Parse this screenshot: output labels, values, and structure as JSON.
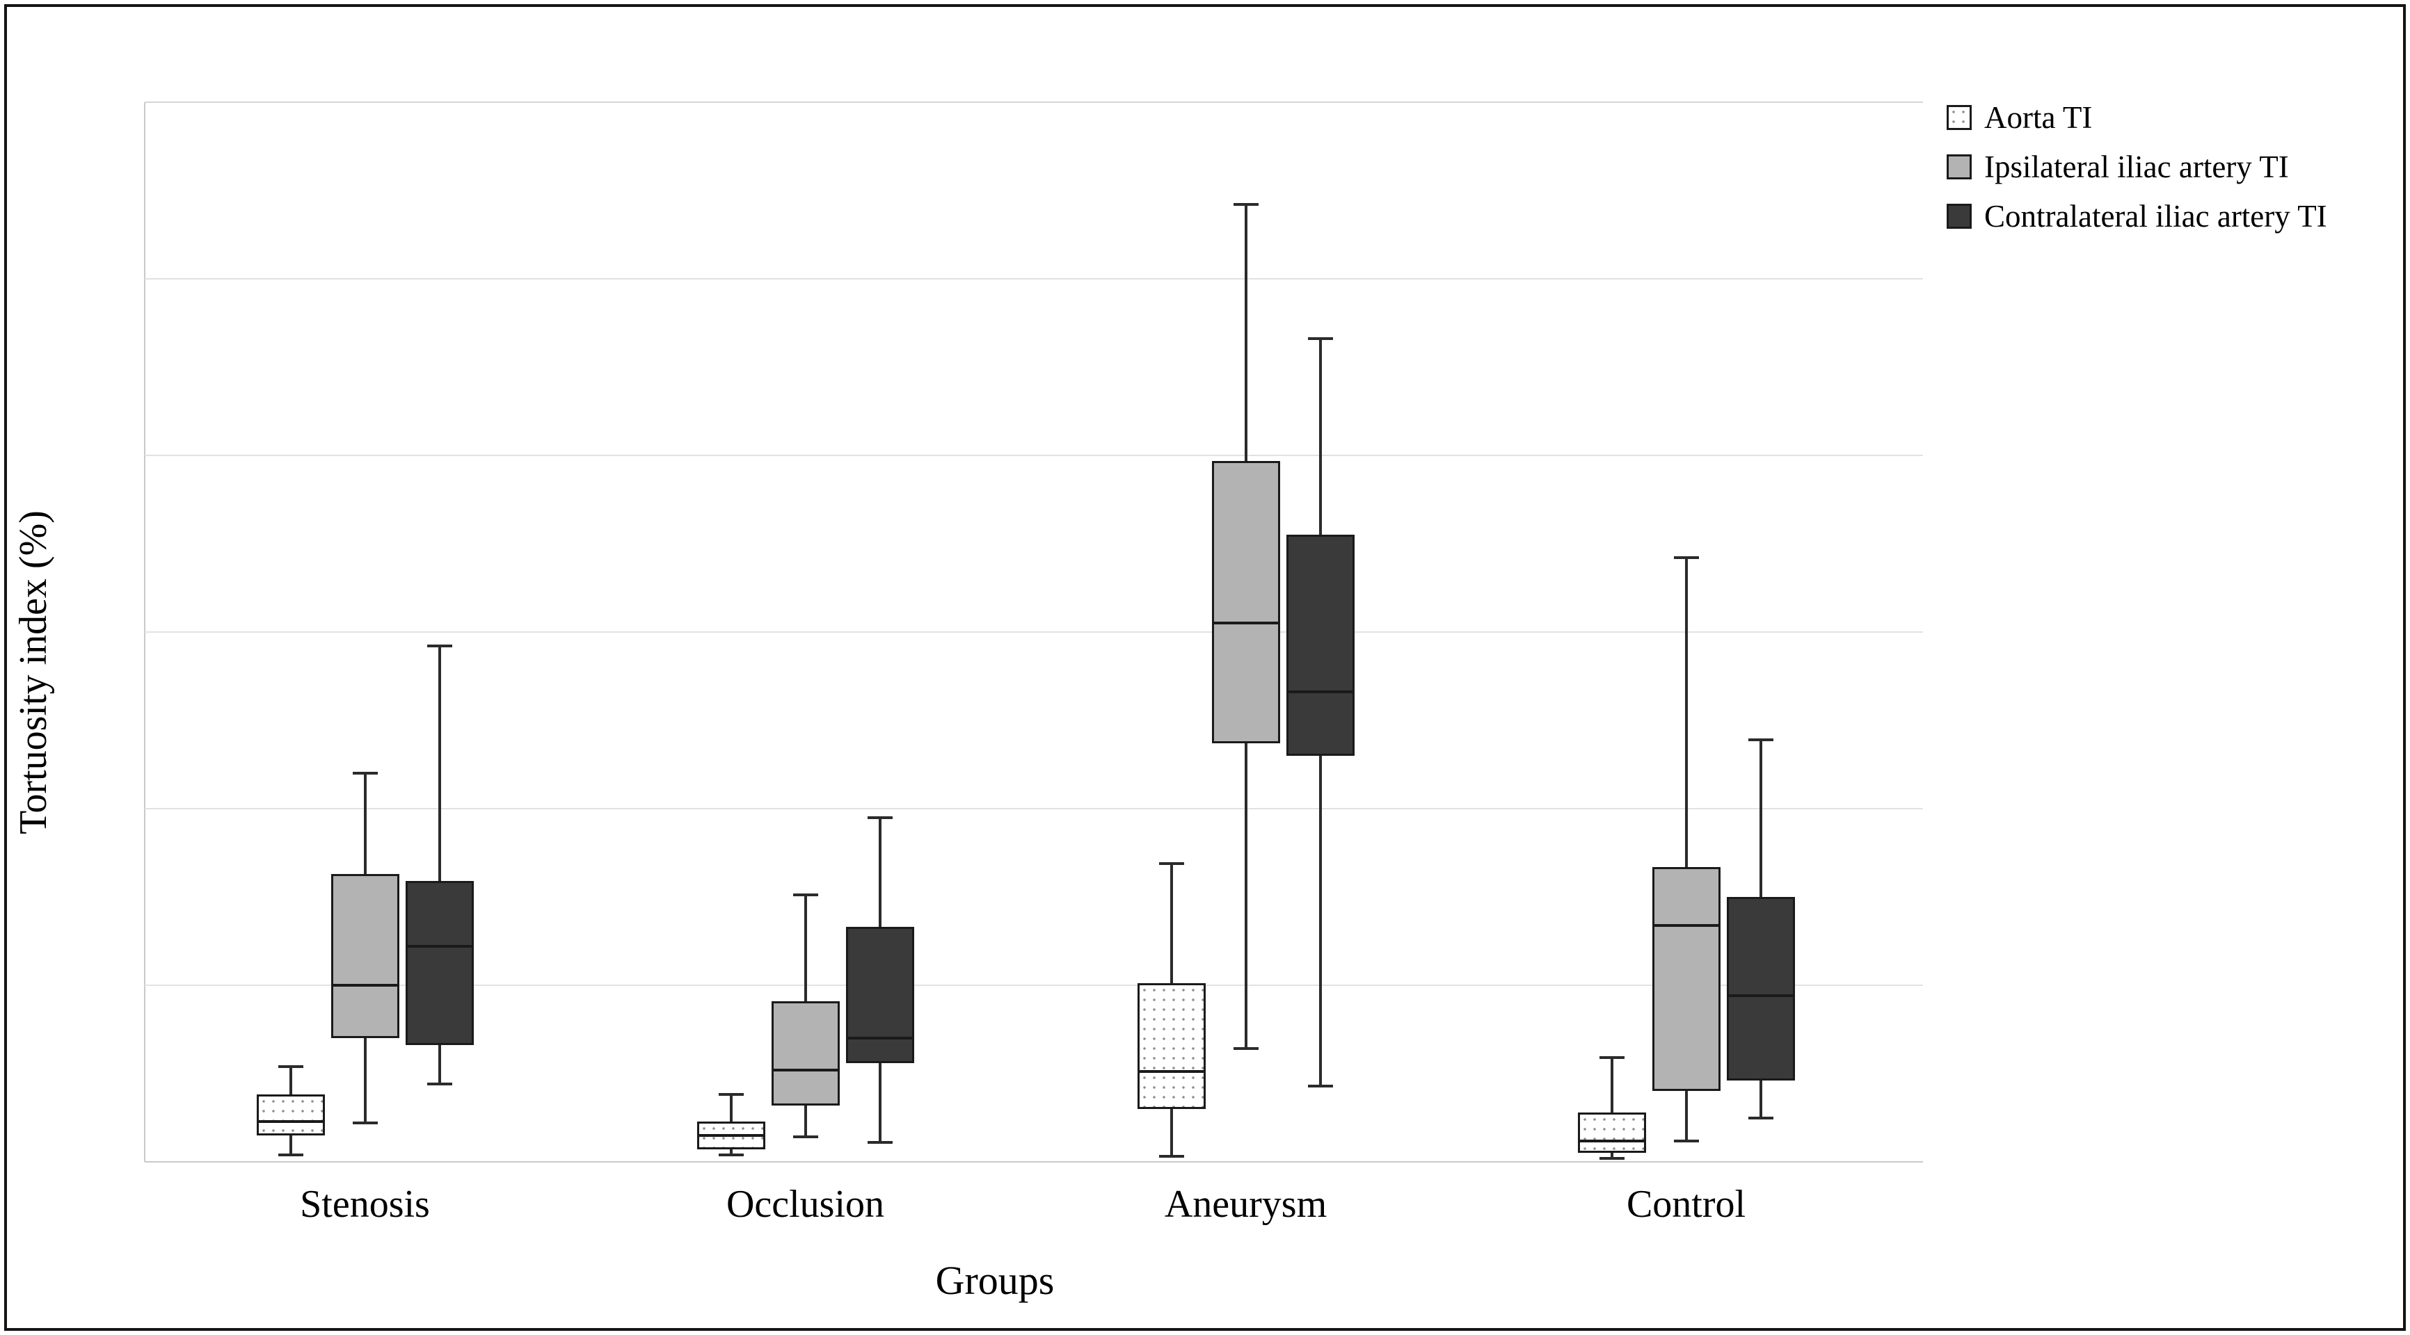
{
  "figure": {
    "y_axis_title": "Tortuosity index (%)",
    "x_axis_title": "Groups",
    "legend": [
      {
        "label": "Aorta TI",
        "fill": "dotted"
      },
      {
        "label": "Ipsilateral iliac artery TI",
        "fill": "#b3b3b3"
      },
      {
        "label": "Contralateral iliac artery TI",
        "fill": "#3a3a3a"
      }
    ],
    "colors": {
      "aorta_fill": "#ffffff",
      "aorta_dot": "#8d8d8d",
      "ipsilateral_fill": "#b3b3b3",
      "contralateral_fill": "#3a3a3a",
      "box_border": "#1a1a1a",
      "gridline": "#e2e2e2",
      "axis_line": "#c9c9c9",
      "tick_text": "#5a5a5a",
      "frame_border": "#141414"
    }
  },
  "chart_data": {
    "type": "boxplot",
    "title": "",
    "xlabel": "Groups",
    "ylabel": "Tortuosity index (%)",
    "ylim": [
      0,
      60
    ],
    "yticks": [
      0,
      10,
      20,
      30,
      40,
      50,
      60
    ],
    "grid": true,
    "legend_position": "top-right",
    "categories": [
      "Stenosis",
      "Occlusion",
      "Aneurysm",
      "Control"
    ],
    "series": [
      {
        "name": "Aorta TI",
        "fill": "dotted-white",
        "boxes": [
          {
            "min": 0.4,
            "q1": 1.5,
            "median": 2.3,
            "q3": 3.8,
            "max": 5.4
          },
          {
            "min": 0.4,
            "q1": 0.7,
            "median": 1.5,
            "q3": 2.3,
            "max": 3.8
          },
          {
            "min": 0.3,
            "q1": 3.0,
            "median": 5.1,
            "q3": 10.1,
            "max": 16.9
          },
          {
            "min": 0.2,
            "q1": 0.5,
            "median": 1.2,
            "q3": 2.8,
            "max": 5.9
          }
        ]
      },
      {
        "name": "Ipsilateral iliac artery TI",
        "fill": "gray",
        "boxes": [
          {
            "min": 2.2,
            "q1": 7.0,
            "median": 10.0,
            "q3": 16.3,
            "max": 22.0
          },
          {
            "min": 1.4,
            "q1": 3.2,
            "median": 5.2,
            "q3": 9.1,
            "max": 15.1
          },
          {
            "min": 6.4,
            "q1": 23.7,
            "median": 30.5,
            "q3": 39.7,
            "max": 54.2
          },
          {
            "min": 1.2,
            "q1": 4.0,
            "median": 13.4,
            "q3": 16.7,
            "max": 34.2
          }
        ]
      },
      {
        "name": "Contralateral iliac artery TI",
        "fill": "dark",
        "boxes": [
          {
            "min": 4.4,
            "q1": 6.6,
            "median": 12.2,
            "q3": 15.9,
            "max": 29.2
          },
          {
            "min": 1.1,
            "q1": 5.6,
            "median": 7.0,
            "q3": 13.3,
            "max": 19.5
          },
          {
            "min": 4.3,
            "q1": 23.0,
            "median": 26.6,
            "q3": 35.5,
            "max": 46.6
          },
          {
            "min": 2.5,
            "q1": 4.6,
            "median": 9.4,
            "q3": 15.0,
            "max": 23.9
          }
        ]
      }
    ]
  }
}
